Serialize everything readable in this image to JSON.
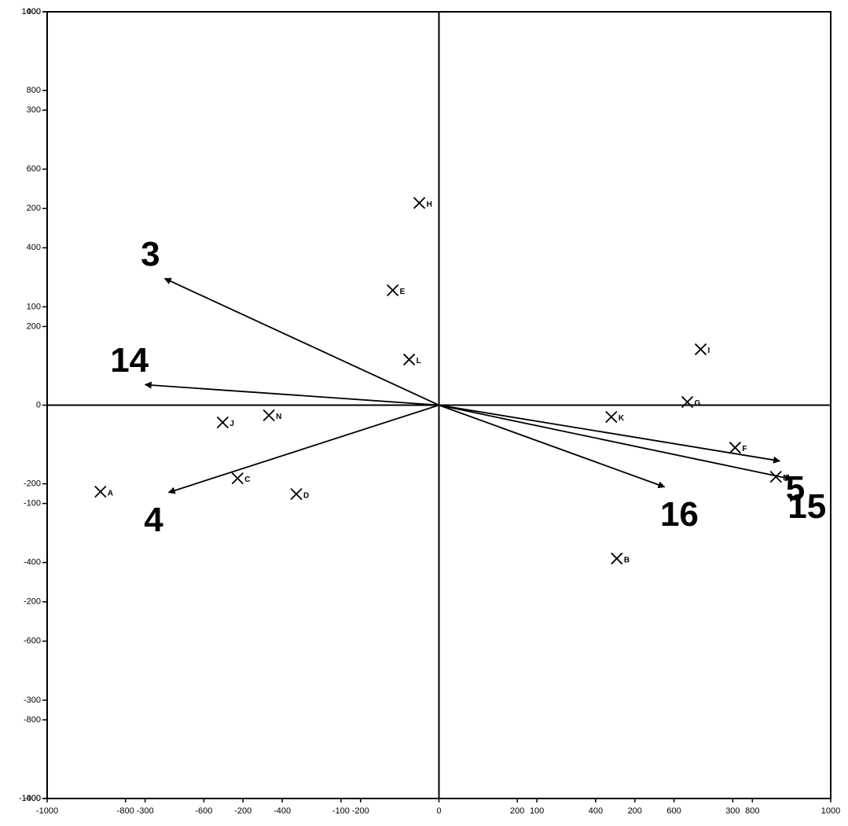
{
  "chart_data": {
    "type": "scatter",
    "xlim": [
      -1000,
      1000
    ],
    "xticks": [
      -1000,
      -800,
      -600,
      -400,
      -200,
      0,
      200,
      400,
      600,
      800,
      1000
    ],
    "x2lim": [
      -400,
      400
    ],
    "x2ticks": [
      -300,
      -200,
      -100,
      100,
      200,
      300
    ],
    "ylim": [
      -1000,
      1000
    ],
    "yticks": [
      -1000,
      -800,
      -600,
      -400,
      -200,
      0,
      200,
      400,
      600,
      800,
      1000
    ],
    "y2lim": [
      -400,
      400
    ],
    "y2ticks": [
      -400,
      -300,
      -200,
      -100,
      100,
      200,
      300,
      400
    ],
    "color": "#000000",
    "points": {
      "labels": [
        "A",
        "B",
        "C",
        "D",
        "E",
        "F",
        "G",
        "H",
        "I",
        "J",
        "K",
        "L",
        "M",
        "N"
      ],
      "x": [
        -864,
        454,
        -514,
        -364,
        -118,
        756,
        634,
        -50,
        668,
        -552,
        440,
        -76,
        860,
        -434
      ],
      "y": [
        -220,
        -390,
        -186,
        -226,
        292,
        -108,
        8,
        514,
        142,
        -44,
        -30,
        116,
        -182,
        -26
      ]
    },
    "vectors": {
      "labels": [
        "3",
        "14",
        "4",
        "5",
        "15",
        "16"
      ],
      "x": [
        -700,
        -750,
        -690,
        870,
        900,
        576
      ],
      "y": [
        322,
        52,
        -222,
        -142,
        -188,
        -208
      ]
    }
  }
}
